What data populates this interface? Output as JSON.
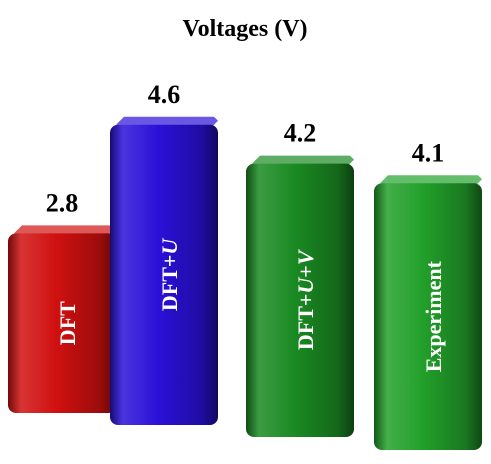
{
  "chart_data": {
    "type": "bar",
    "title": "Voltages (V)",
    "categories": [
      "DFT",
      "DFT+U",
      "DFT+U+V",
      "Experiment"
    ],
    "category_parts": [
      [
        {
          "t": "DFT",
          "i": false
        }
      ],
      [
        {
          "t": "DFT+",
          "i": false
        },
        {
          "t": "U",
          "i": true
        }
      ],
      [
        {
          "t": "DFT+",
          "i": false
        },
        {
          "t": "U",
          "i": true
        },
        {
          "t": "+",
          "i": false
        },
        {
          "t": "V",
          "i": true
        }
      ],
      [
        {
          "t": "Experiment",
          "i": false
        }
      ]
    ],
    "values": [
      2.8,
      4.6,
      4.2,
      4.1
    ],
    "value_labels": [
      "2.8",
      "4.6",
      "4.2",
      "4.1"
    ],
    "colors": [
      "#d01010",
      "#2a10d8",
      "#1a8a22",
      "#22a02a"
    ],
    "xlabel": "",
    "ylabel": "",
    "grid": false,
    "legend": "none"
  }
}
